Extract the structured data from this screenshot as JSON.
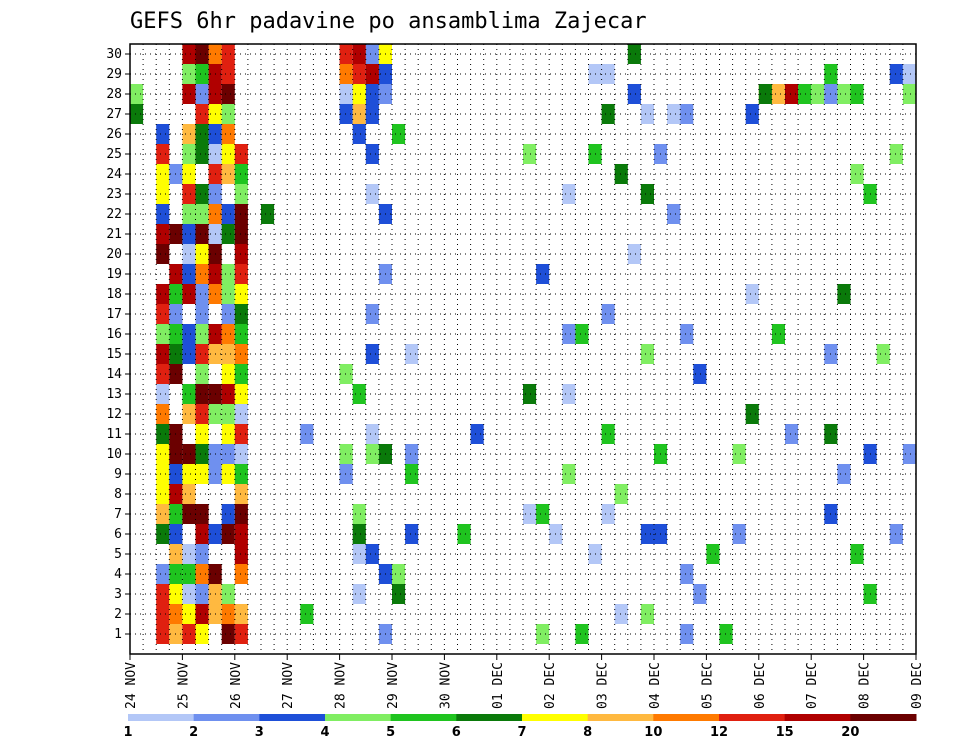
{
  "chart_data": {
    "type": "heatmap",
    "title": "GEFS 6hr padavine po ansamblima Zajecar",
    "xlabel": "",
    "ylabel": "",
    "x_tick_labels": [
      "24 NOV",
      "25 NOV",
      "26 NOV",
      "27 NOV",
      "28 NOV",
      "29 NOV",
      "30 NOV",
      "01 DEC",
      "02 DEC",
      "03 DEC",
      "04 DEC",
      "05 DEC",
      "06 DEC",
      "07 DEC",
      "08 DEC",
      "09 DEC"
    ],
    "y_tick_labels": [
      "1",
      "2",
      "3",
      "4",
      "5",
      "6",
      "7",
      "8",
      "9",
      "10",
      "11",
      "12",
      "13",
      "14",
      "15",
      "16",
      "17",
      "18",
      "19",
      "20",
      "21",
      "22",
      "23",
      "24",
      "25",
      "26",
      "27",
      "28",
      "29",
      "30"
    ],
    "grid": true,
    "colorbar": {
      "labels": [
        "1",
        "2",
        "3",
        "4",
        "5",
        "6",
        "7",
        "8",
        "10",
        "12",
        "15",
        "20"
      ],
      "colors": [
        "#b3c7f7",
        "#6f90ef",
        "#1e4fd8",
        "#80ee62",
        "#1fc41f",
        "#0a7a0a",
        "#ffff00",
        "#ffb940",
        "#ff7a00",
        "#e02010",
        "#b00000",
        "#6b0000"
      ]
    },
    "cells_note_level_index": "level 0..11 maps to colorbar colors",
    "rows": {
      "30": [
        [
          1,
          6
        ],
        [
          1,
          7
        ],
        [
          1,
          8
        ],
        [
          1,
          9
        ],
        [
          1,
          10
        ],
        [
          1,
          11
        ],
        [
          4,
          1
        ],
        [
          4,
          6
        ],
        [
          4,
          9
        ],
        [
          4,
          10
        ],
        [
          9,
          5
        ]
      ],
      "29": [
        [
          1,
          5
        ],
        [
          1,
          11
        ],
        [
          1,
          10
        ],
        [
          1,
          9
        ],
        [
          1,
          3
        ],
        [
          1,
          4
        ],
        [
          4,
          1
        ],
        [
          4,
          2
        ],
        [
          4,
          8
        ],
        [
          4,
          9
        ],
        [
          4,
          10
        ],
        [
          8,
          0
        ],
        [
          9,
          0
        ],
        [
          13,
          4
        ],
        [
          14,
          2
        ],
        [
          14,
          0
        ]
      ],
      "28": [
        [
          0,
          3
        ],
        [
          1,
          1
        ],
        [
          1,
          10
        ],
        [
          1,
          11
        ],
        [
          1,
          10
        ],
        [
          4,
          1
        ],
        [
          4,
          2
        ],
        [
          4,
          1
        ],
        [
          4,
          0
        ],
        [
          4,
          6
        ],
        [
          9,
          2
        ],
        [
          12,
          0
        ],
        [
          12,
          6
        ],
        [
          12,
          7
        ],
        [
          12,
          10
        ],
        [
          12,
          4
        ],
        [
          12,
          5
        ],
        [
          13,
          0
        ],
        [
          13,
          2
        ],
        [
          13,
          4
        ],
        [
          13,
          3
        ],
        [
          13,
          1
        ],
        [
          13,
          3
        ],
        [
          14,
          3
        ]
      ],
      "27": [
        [
          0,
          5
        ],
        [
          1,
          9
        ],
        [
          1,
          6
        ],
        [
          1,
          3
        ],
        [
          4,
          2
        ],
        [
          4,
          7
        ],
        [
          4,
          2
        ],
        [
          9,
          0
        ],
        [
          9,
          5
        ],
        [
          10,
          0
        ],
        [
          10,
          1
        ],
        [
          11,
          2
        ]
      ]
    }
  }
}
